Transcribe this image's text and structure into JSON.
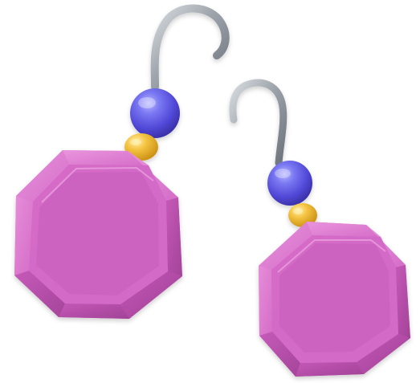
{
  "scene": {
    "subject": "earrings",
    "items": [
      {
        "label": "left-earring"
      },
      {
        "label": "right-earring"
      }
    ]
  },
  "colors": {
    "background": "#ffffff",
    "gem_light": "#de7fd0",
    "gem_mid": "#cf63c1",
    "gem_dark": "#a7449f",
    "bead_blue": "#6f69f0",
    "bead_blue_dark": "#4a3fc5",
    "bead_yellow": "#f5c342",
    "bead_yellow_dark": "#d49b1f",
    "hook_silver": "#9da3aa"
  }
}
